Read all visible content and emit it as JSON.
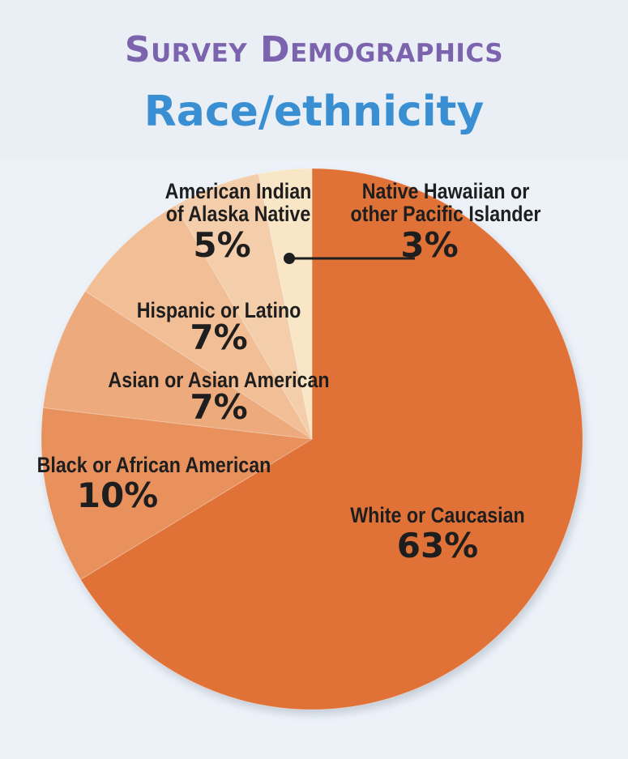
{
  "title": "Survey Demographics",
  "subtitle": "Race/ethnicity",
  "colors": {
    "title": "#7b63ad",
    "subtitle": "#3a8fd2",
    "slices": [
      "#e07238",
      "#e8915c",
      "#edaa7b",
      "#f1be95",
      "#f4ceaa",
      "#f8e6c7"
    ]
  },
  "chart_data": {
    "type": "pie",
    "start": "12 o'clock",
    "direction": "clockwise",
    "slices": [
      {
        "label": "White or Caucasian",
        "value": 63,
        "value_label": "63%"
      },
      {
        "label": "Black or African American",
        "value": 10,
        "value_label": "10%"
      },
      {
        "label": "Asian or Asian American",
        "value": 7,
        "value_label": "7%"
      },
      {
        "label": "Hispanic or Latino",
        "value": 7,
        "value_label": "7%"
      },
      {
        "label": "American Indian\nof Alaska Native",
        "value": 5,
        "value_label": "5%"
      },
      {
        "label": "Native Hawaiian or\nother Pacific Islander",
        "value": 3,
        "value_label": "3%"
      }
    ]
  }
}
